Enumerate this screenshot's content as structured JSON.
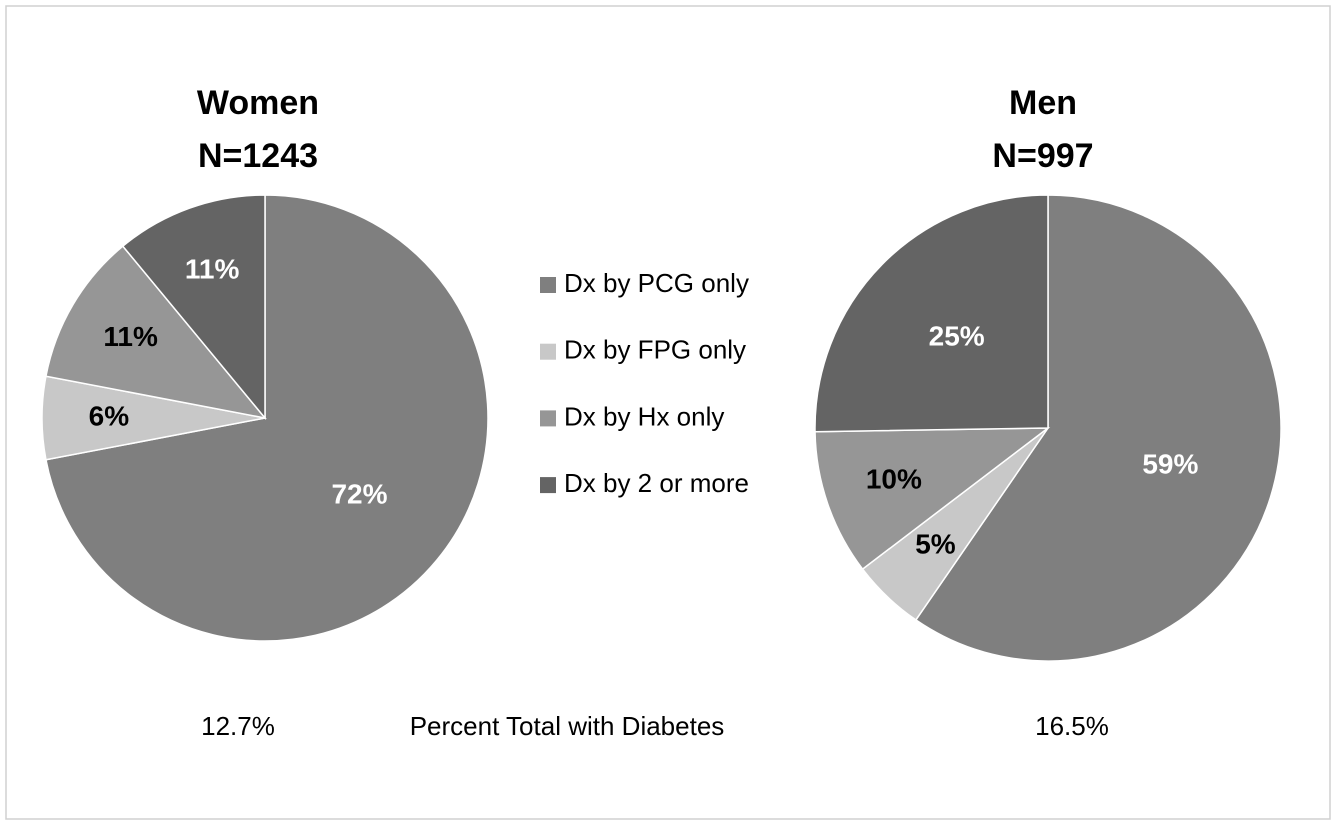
{
  "chart_data": [
    {
      "type": "pie",
      "title": "Women",
      "subtitle": "N=1243",
      "values": [
        72,
        6,
        11,
        11
      ],
      "value_labels": [
        "72%",
        "6%",
        "11%",
        "11%"
      ],
      "label_colors": [
        "#ffffff",
        "#000000",
        "#000000",
        "#ffffff"
      ],
      "total": "12.7%"
    },
    {
      "type": "pie",
      "title": "Men",
      "subtitle": "N=997",
      "values": [
        59,
        5,
        10,
        25
      ],
      "value_labels": [
        "59%",
        "5%",
        "10%",
        "25%"
      ],
      "label_colors": [
        "#ffffff",
        "#000000",
        "#000000",
        "#ffffff"
      ],
      "total": "16.5%"
    }
  ],
  "legend": {
    "categories": [
      "Dx by PCG only",
      "Dx by FPG only",
      "Dx by Hx only",
      "Dx by 2 or more"
    ],
    "colors": [
      "#7f7f7f",
      "#c8c8c8",
      "#969696",
      "#646464"
    ]
  },
  "footer_label": "Percent Total with Diabetes"
}
